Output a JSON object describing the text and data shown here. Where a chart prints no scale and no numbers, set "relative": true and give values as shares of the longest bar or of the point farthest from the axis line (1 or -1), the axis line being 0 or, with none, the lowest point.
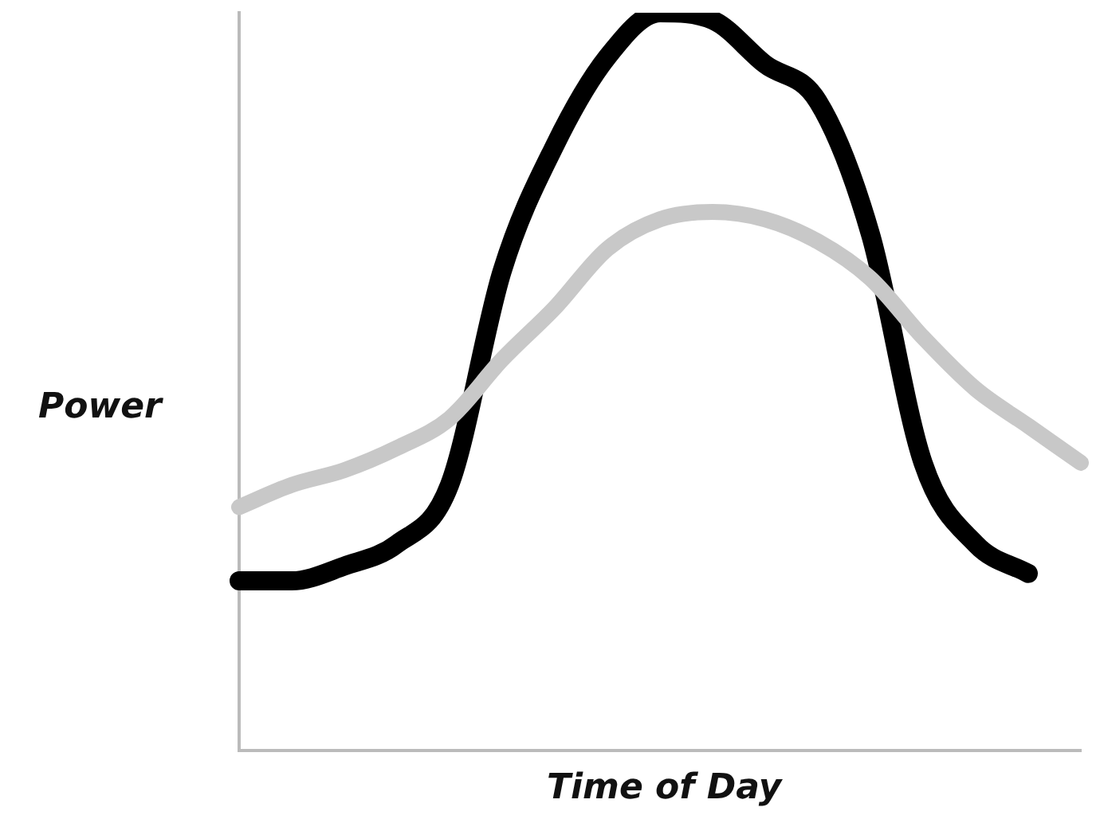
{
  "chart_data": {
    "type": "line",
    "relative": true,
    "ylabel": "Power",
    "xlabel": "Time of Day",
    "legend": false,
    "grid": false,
    "marker": "none",
    "line_style": "solid",
    "categories": [
      null,
      null,
      null,
      null,
      null,
      null,
      null,
      null,
      null,
      null,
      null,
      null,
      null,
      null,
      null,
      null,
      null
    ],
    "series": [
      {
        "color": "#000000",
        "values": [
          0.23,
          0.23,
          0.25,
          0.28,
          0.36,
          0.65,
          0.82,
          0.94,
          1,
          0.99,
          0.93,
          0.88,
          0.7,
          0.39,
          0.28,
          0.24,
          null
        ]
      },
      {
        "color": "#c8c8c8",
        "values": [
          0.33,
          0.36,
          0.38,
          0.41,
          0.45,
          0.53,
          0.6,
          0.68,
          0.72,
          0.73,
          0.72,
          0.69,
          0.64,
          0.56,
          0.49,
          0.44,
          0.39
        ]
      }
    ]
  }
}
